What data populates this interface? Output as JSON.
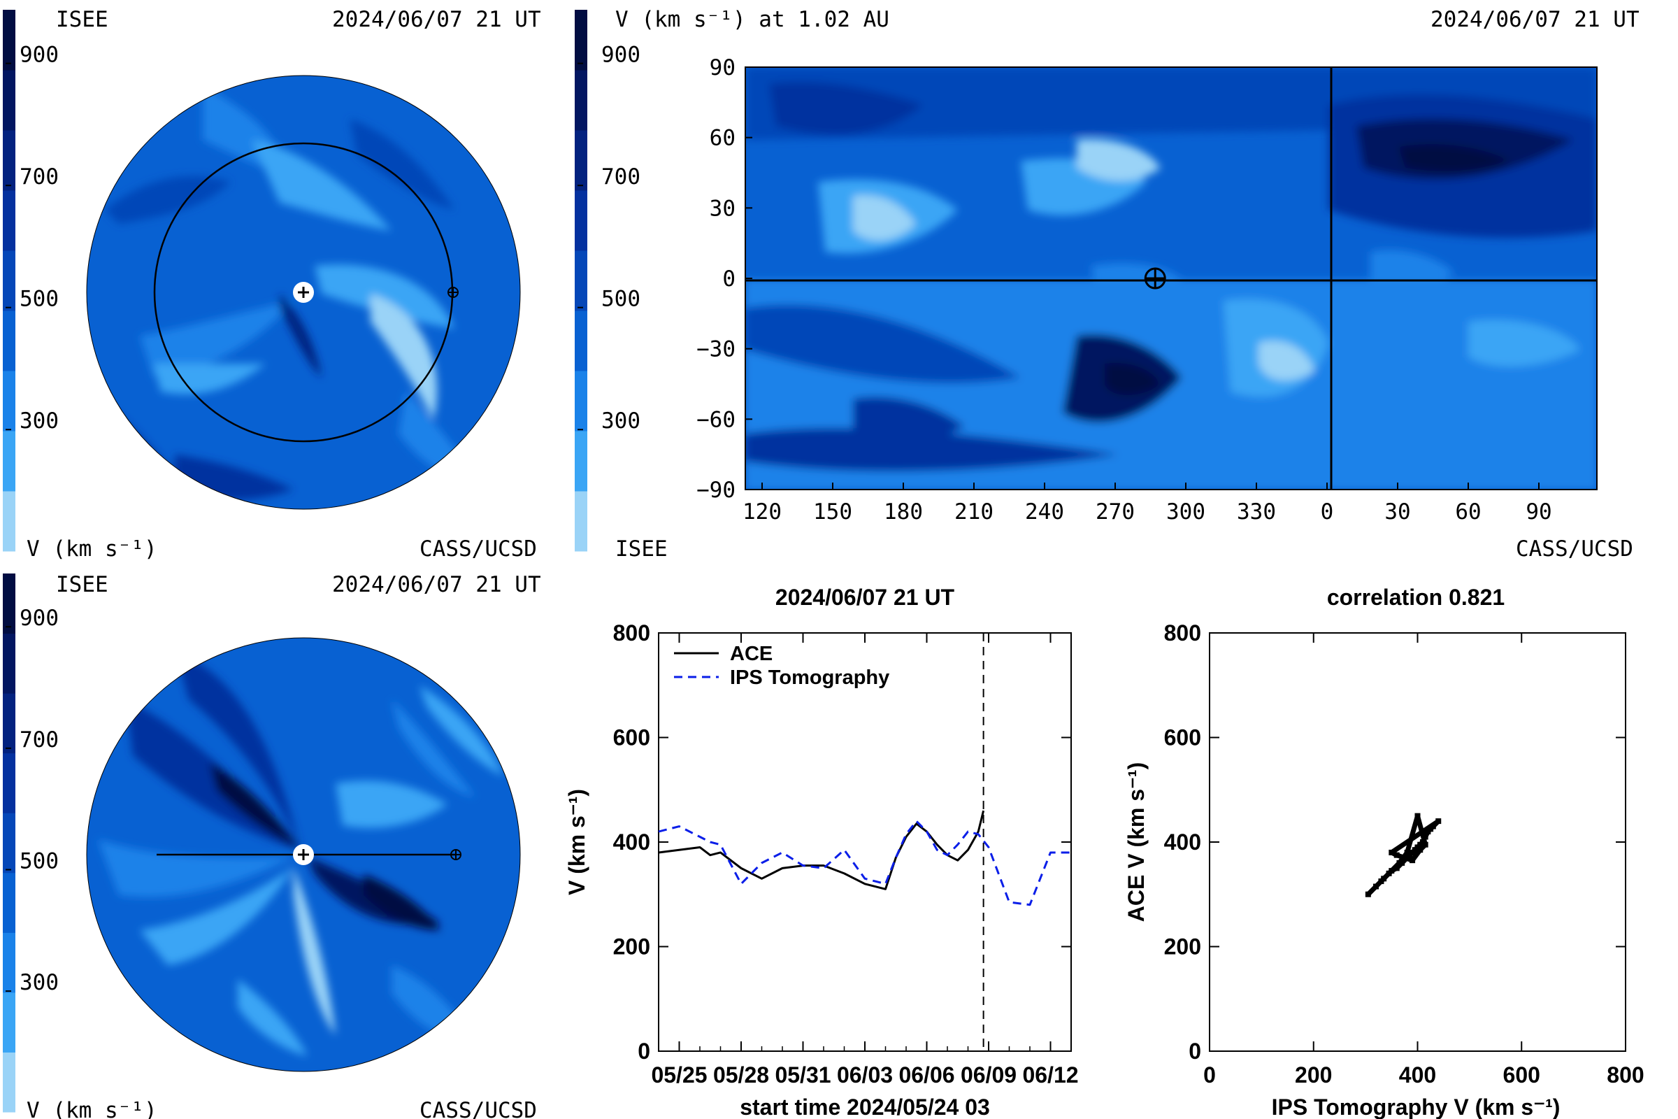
{
  "colors": {
    "levels": [
      "#9ad3f7",
      "#3aa5f5",
      "#1a82e9",
      "#0861d2",
      "#0547b8",
      "#04319f",
      "#03227f",
      "#021661",
      "#010d42"
    ],
    "background": "#ffffff",
    "ace_line": "#000000",
    "ips_line": "#0a1ee8"
  },
  "colorbar": {
    "ticks": [
      "900",
      "700",
      "500",
      "300"
    ],
    "unit_label": "V (km s⁻¹)"
  },
  "panel_top_left": {
    "type": "polar-contour",
    "left_label": "ISEE",
    "date_label": "2024/06/07 21 UT",
    "unit_label": "V (km s⁻¹)",
    "credit": "CASS/UCSD",
    "markers": [
      "sun-center-marker",
      "earth-marker",
      "earth-orbit-circle"
    ]
  },
  "panel_bottom_left": {
    "type": "polar-contour",
    "left_label": "ISEE",
    "date_label": "2024/06/07 21 UT",
    "unit_label": "V (km s⁻¹)",
    "credit": "CASS/UCSD",
    "markers": [
      "sun-center-marker",
      "earth-marker",
      "sun-earth-line"
    ]
  },
  "panel_top_right": {
    "type": "lat-lon-contour",
    "title": "V (km s⁻¹) at 1.02 AU",
    "date_label": "2024/06/07 21 UT",
    "bottom_left_label": "ISEE",
    "credit": "CASS/UCSD",
    "x_ticks": [
      "120",
      "150",
      "180",
      "210",
      "240",
      "270",
      "300",
      "330",
      "0",
      "30",
      "60",
      "90"
    ],
    "y_ticks": [
      "90",
      "60",
      "30",
      "0",
      "−30",
      "−60",
      "−90"
    ],
    "earth_longitude": 287,
    "earth_latitude": 0,
    "vertical_line_at": "0"
  },
  "chart_data": [
    {
      "type": "line",
      "title": "2024/06/07 21 UT",
      "xlabel": "start time 2024/05/24 03",
      "ylabel": "V (km s⁻¹)",
      "ylim": [
        0,
        800
      ],
      "xlim_days": [
        0,
        20
      ],
      "y_ticks": [
        "0",
        "200",
        "400",
        "600",
        "800"
      ],
      "x_ticks": [
        "05/25",
        "05/28",
        "05/31",
        "06/03",
        "06/06",
        "06/09",
        "06/12"
      ],
      "current_time_line": "2024/06/07 21 UT",
      "legend": "top-left",
      "series": [
        {
          "name": "ACE",
          "style": "solid",
          "x": [
            0,
            1,
            2,
            2.5,
            3,
            4,
            5,
            6,
            7,
            8,
            9,
            10,
            11,
            11.5,
            12,
            12.5,
            13,
            13.5,
            14,
            14.5,
            15,
            15.5,
            15.75
          ],
          "values": [
            380,
            385,
            390,
            375,
            380,
            350,
            330,
            350,
            355,
            355,
            340,
            320,
            310,
            370,
            410,
            435,
            420,
            395,
            375,
            365,
            385,
            420,
            460
          ]
        },
        {
          "name": "IPS Tomography",
          "style": "dashed",
          "x": [
            0,
            1,
            2,
            2.5,
            3,
            4,
            5,
            6,
            7,
            8,
            9,
            10,
            11,
            11.5,
            12,
            12.5,
            13,
            13.5,
            14,
            14.5,
            15,
            15.5,
            16,
            17,
            18,
            19,
            20
          ],
          "values": [
            420,
            430,
            410,
            400,
            395,
            320,
            360,
            380,
            355,
            350,
            385,
            330,
            320,
            370,
            415,
            440,
            420,
            385,
            375,
            395,
            420,
            415,
            390,
            285,
            280,
            380,
            380
          ]
        }
      ]
    },
    {
      "type": "scatter",
      "title": "correlation 0.821",
      "xlabel": "IPS Tomography V (km s⁻¹)",
      "ylabel": "ACE V (km s⁻¹)",
      "xlim": [
        0,
        800
      ],
      "ylim": [
        0,
        800
      ],
      "x_ticks": [
        "0",
        "200",
        "400",
        "600",
        "800"
      ],
      "y_ticks": [
        "0",
        "200",
        "400",
        "600",
        "800"
      ],
      "x": [
        305,
        320,
        335,
        350,
        360,
        370,
        380,
        385,
        390,
        395,
        400,
        405,
        410,
        415,
        420,
        425,
        430,
        440,
        350,
        360,
        375,
        390,
        405,
        415,
        400,
        380,
        365,
        345,
        330
      ],
      "values": [
        300,
        315,
        330,
        345,
        350,
        360,
        370,
        375,
        380,
        385,
        390,
        395,
        400,
        410,
        420,
        425,
        430,
        440,
        380,
        375,
        370,
        365,
        385,
        395,
        450,
        380,
        360,
        340,
        325
      ]
    }
  ]
}
